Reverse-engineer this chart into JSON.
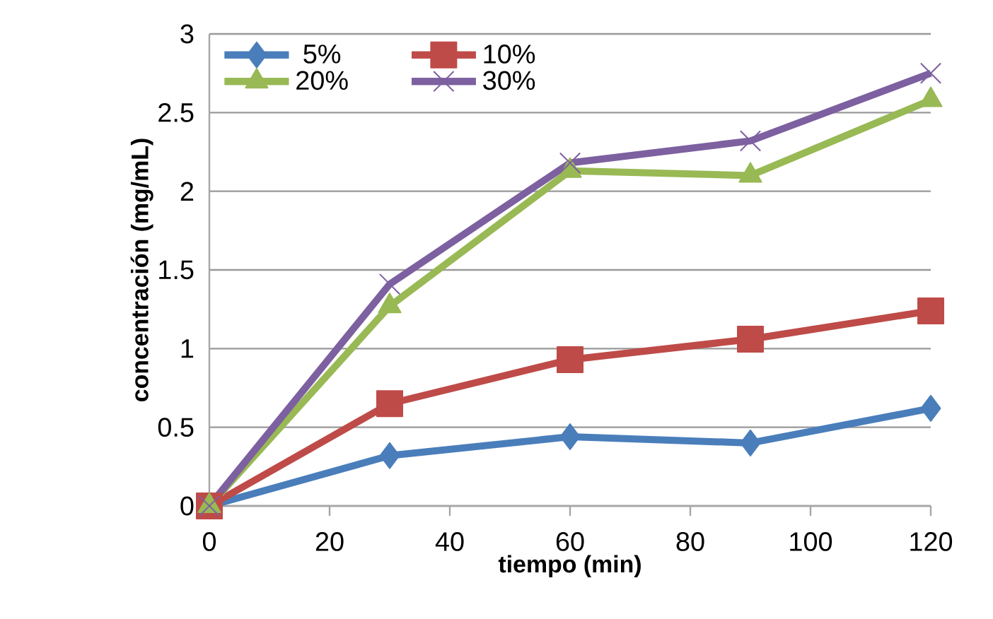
{
  "chart_data": {
    "type": "line",
    "xlabel": "tiempo (min)",
    "ylabel": "concentración (mg/mL)",
    "x": [
      0,
      30,
      60,
      90,
      120
    ],
    "series": [
      {
        "name": "5%",
        "color": "#4a7ebb",
        "marker": "diamond",
        "values": [
          0,
          0.32,
          0.44,
          0.4,
          0.62
        ]
      },
      {
        "name": "10%",
        "color": "#be4b48",
        "marker": "square",
        "values": [
          0,
          0.65,
          0.93,
          1.06,
          1.24
        ]
      },
      {
        "name": "20%",
        "color": "#98b954",
        "marker": "triangle",
        "values": [
          0,
          1.27,
          2.13,
          2.1,
          2.58
        ]
      },
      {
        "name": "30%",
        "color": "#7d60a0",
        "marker": "cross",
        "values": [
          0,
          1.41,
          2.18,
          2.32,
          2.75
        ]
      }
    ],
    "xlim": [
      0,
      120
    ],
    "xticks": [
      0,
      20,
      40,
      60,
      80,
      100,
      120
    ],
    "ylim": [
      0,
      3
    ],
    "yticks": [
      0,
      0.5,
      1,
      1.5,
      2,
      2.5,
      3
    ],
    "grid": "y",
    "legend": "top left",
    "line_style": "solid"
  }
}
